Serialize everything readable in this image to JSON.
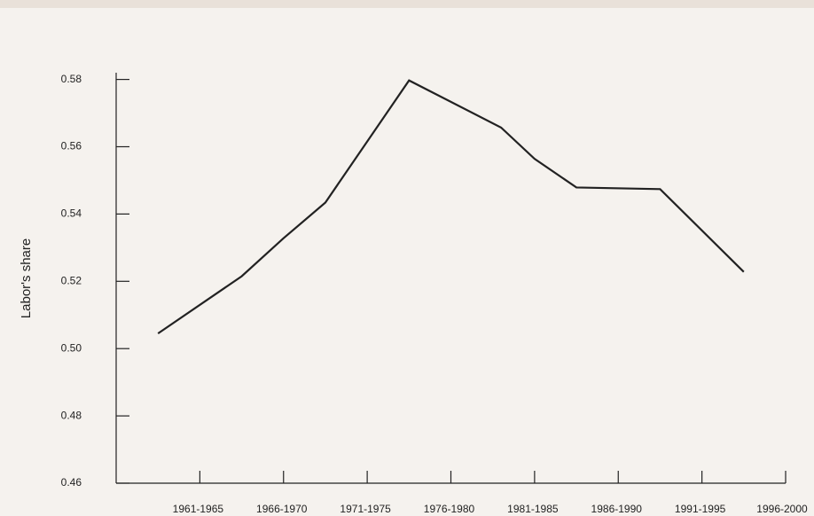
{
  "chart_data": {
    "type": "line",
    "y_label": "Labor's share",
    "x": [
      0.5,
      1.5,
      2.0,
      2.5,
      3.5,
      4.6,
      5.0,
      5.5,
      6.5,
      7.5
    ],
    "series": [
      {
        "color": "#222222",
        "values": [
          0.5045,
          0.5215,
          0.5328,
          0.5434,
          0.5797,
          0.5657,
          0.5564,
          0.5479,
          0.5474,
          0.5228
        ]
      }
    ],
    "xlim": [
      0,
      8
    ],
    "xticks": [
      {
        "value": 1,
        "label": "1961-1965"
      },
      {
        "value": 2,
        "label": "1966-1970"
      },
      {
        "value": 3,
        "label": "1971-1975"
      },
      {
        "value": 4,
        "label": "1976-1980"
      },
      {
        "value": 5,
        "label": "1981-1985"
      },
      {
        "value": 6,
        "label": "1986-1990"
      },
      {
        "value": 7,
        "label": "1991-1995"
      },
      {
        "value": 8,
        "label": "1996-2000"
      }
    ],
    "ylim": [
      0.46,
      0.582
    ],
    "yticks": [
      0.46,
      0.48,
      {
        "value": 0.5,
        "label": "0.50"
      },
      0.52,
      0.54,
      0.56,
      0.58
    ]
  }
}
